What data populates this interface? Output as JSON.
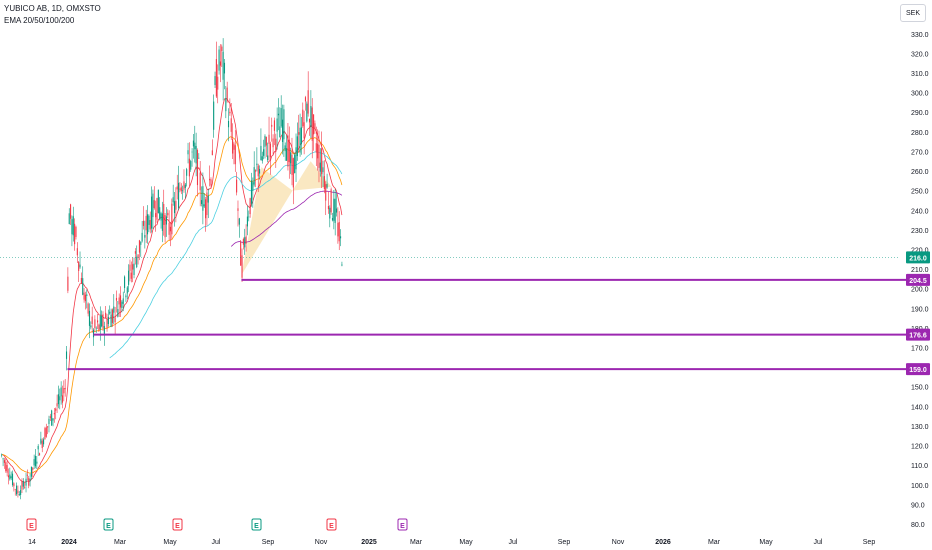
{
  "header": {
    "symbol_line": "YUBICO AB, 1D, OMXSTO",
    "indicator_line": "EMA 20/50/100/200",
    "currency": "SEK"
  },
  "chart_data": {
    "type": "candlestick",
    "title": "YUBICO AB, 1D, OMXSTO",
    "ylim": [
      80,
      335
    ],
    "y_ticks": [
      "80.0",
      "90.0",
      "100.0",
      "110.0",
      "120.0",
      "130.0",
      "140.0",
      "150.0",
      "160.0",
      "170.0",
      "180.0",
      "190.0",
      "200.0",
      "210.0",
      "220.0",
      "230.0",
      "240.0",
      "250.0",
      "260.0",
      "270.0",
      "280.0",
      "290.0",
      "300.0",
      "310.0",
      "320.0",
      "330.0"
    ],
    "x_ticks": [
      "14",
      "2024",
      "Mar",
      "May",
      "Jul",
      "Sep",
      "Nov",
      "2025",
      "Mar",
      "May",
      "Jul",
      "Sep",
      "Nov",
      "2026",
      "Mar",
      "May",
      "Jul",
      "Sep"
    ],
    "last_price": {
      "label": "216.0",
      "value": 216.0,
      "color": "#089981"
    },
    "horizontal_levels": [
      {
        "label": "204.5",
        "value": 204.5,
        "color": "#9c27b0"
      },
      {
        "label": "176.6",
        "value": 176.6,
        "color": "#9c27b0"
      },
      {
        "label": "159.0",
        "value": 159.0,
        "color": "#9c27b0"
      }
    ],
    "earnings_markers": [
      {
        "label": "E",
        "color": "#f23645"
      },
      {
        "label": "E",
        "color": "#089981"
      },
      {
        "label": "E",
        "color": "#f23645"
      },
      {
        "label": "E",
        "color": "#089981"
      },
      {
        "label": "E",
        "color": "#f23645"
      },
      {
        "label": "E",
        "color": "#9c27b0"
      }
    ],
    "ema_series": [
      {
        "period": "20",
        "color": "#f23645"
      },
      {
        "period": "50",
        "color": "#ff9800"
      },
      {
        "period": "100",
        "color": "#4dd0e1"
      },
      {
        "period": "200",
        "color": "#9c27b0"
      }
    ],
    "close_path": [
      {
        "date": "2023-12-10",
        "close": 115
      },
      {
        "date": "2023-12-20",
        "close": 105
      },
      {
        "date": "2023-12-28",
        "close": 96
      },
      {
        "date": "2024-01-05",
        "close": 100
      },
      {
        "date": "2024-01-12",
        "close": 104
      },
      {
        "date": "2024-01-22",
        "close": 118
      },
      {
        "date": "2024-02-01",
        "close": 130
      },
      {
        "date": "2024-02-12",
        "close": 140
      },
      {
        "date": "2024-02-22",
        "close": 150
      },
      {
        "date": "2024-02-26",
        "close": 238
      },
      {
        "date": "2024-03-05",
        "close": 225
      },
      {
        "date": "2024-03-15",
        "close": 195
      },
      {
        "date": "2024-03-25",
        "close": 178
      },
      {
        "date": "2024-04-05",
        "close": 182
      },
      {
        "date": "2024-04-20",
        "close": 190
      },
      {
        "date": "2024-05-05",
        "close": 205
      },
      {
        "date": "2024-05-20",
        "close": 225
      },
      {
        "date": "2024-06-05",
        "close": 245
      },
      {
        "date": "2024-06-20",
        "close": 230
      },
      {
        "date": "2024-07-05",
        "close": 255
      },
      {
        "date": "2024-07-20",
        "close": 270
      },
      {
        "date": "2024-08-01",
        "close": 240
      },
      {
        "date": "2024-08-08",
        "close": 260
      },
      {
        "date": "2024-08-13",
        "close": 305
      },
      {
        "date": "2024-08-20",
        "close": 318
      },
      {
        "date": "2024-08-28",
        "close": 290
      },
      {
        "date": "2024-09-05",
        "close": 265
      },
      {
        "date": "2024-09-12",
        "close": 210
      },
      {
        "date": "2024-09-20",
        "close": 240
      },
      {
        "date": "2024-10-01",
        "close": 262
      },
      {
        "date": "2024-10-15",
        "close": 275
      },
      {
        "date": "2024-10-30",
        "close": 285
      },
      {
        "date": "2024-11-10",
        "close": 258
      },
      {
        "date": "2024-11-20",
        "close": 280
      },
      {
        "date": "2024-11-28",
        "close": 295
      },
      {
        "date": "2024-12-05",
        "close": 278
      },
      {
        "date": "2024-12-15",
        "close": 262
      },
      {
        "date": "2024-12-22",
        "close": 245
      },
      {
        "date": "2024-12-30",
        "close": 238
      },
      {
        "date": "2025-01-07",
        "close": 216
      }
    ]
  }
}
